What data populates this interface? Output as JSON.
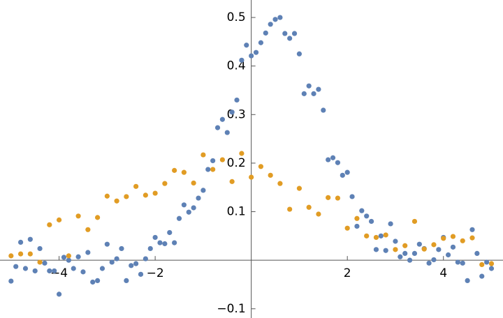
{
  "chart_data": {
    "type": "scatter",
    "xlim": [
      -5.23,
      5.24
    ],
    "ylim": [
      -0.119,
      0.536
    ],
    "xticks": [
      {
        "value": -4,
        "label": "−4"
      },
      {
        "value": -2,
        "label": "−2"
      },
      2,
      4
    ],
    "yticks": [
      {
        "value": -0.1,
        "label": "−0.1"
      },
      0.1,
      0.2,
      0.3,
      0.4,
      0.5
    ],
    "series": [
      {
        "color": "#5e81b5",
        "x": [
          -5,
          -4.9,
          -4.8,
          -4.7,
          -4.6,
          -4.5,
          -4.4,
          -4.3,
          -4.2,
          -4.1,
          -4,
          -3.9,
          -3.8,
          -3.7,
          -3.6,
          -3.5,
          -3.4,
          -3.3,
          -3.2,
          -3.1,
          -3,
          -2.9,
          -2.8,
          -2.7,
          -2.6,
          -2.5,
          -2.4,
          -2.3,
          -2.2,
          -2.1,
          -2,
          -1.9,
          -1.8,
          -1.7,
          -1.6,
          -1.5,
          -1.4,
          -1.3,
          -1.2,
          -1.1,
          -1,
          -0.9,
          -0.8,
          -0.7,
          -0.6,
          -0.5,
          -0.4,
          -0.3,
          -0.2,
          -0.1,
          0,
          0.1,
          0.2,
          0.3,
          0.4,
          0.5,
          0.6,
          0.7,
          0.8,
          0.9,
          1,
          1.1,
          1.2,
          1.3,
          1.4,
          1.5,
          1.6,
          1.7,
          1.8,
          1.9,
          2,
          2.1,
          2.2,
          2.3,
          2.4,
          2.5,
          2.6,
          2.7,
          2.8,
          2.9,
          3,
          3.1,
          3.2,
          3.3,
          3.4,
          3.5,
          3.6,
          3.7,
          3.8,
          3.9,
          4,
          4.1,
          4.2,
          4.3,
          4.4,
          4.5,
          4.6,
          4.7,
          4.8,
          4.9,
          5
        ],
        "values": [
          -0.043,
          -0.013,
          0.037,
          -0.017,
          0.043,
          -0.022,
          0.024,
          -0.006,
          -0.022,
          -0.022,
          -0.07,
          0.006,
          0.0,
          -0.017,
          0.007,
          -0.024,
          0.016,
          -0.045,
          -0.042,
          -0.017,
          0.033,
          -0.004,
          0.003,
          0.024,
          -0.042,
          -0.011,
          -0.007,
          -0.029,
          0.003,
          0.024,
          0.047,
          0.036,
          0.034,
          0.057,
          0.036,
          0.086,
          0.114,
          0.099,
          0.108,
          0.128,
          0.144,
          0.187,
          0.205,
          0.273,
          0.29,
          0.263,
          0.305,
          0.33,
          0.412,
          0.443,
          0.421,
          0.428,
          0.448,
          0.468,
          0.486,
          0.496,
          0.5,
          0.467,
          0.457,
          0.467,
          0.425,
          0.343,
          0.359,
          0.343,
          0.352,
          0.309,
          0.207,
          0.211,
          0.201,
          0.175,
          0.181,
          0.131,
          0.07,
          0.102,
          0.091,
          0.08,
          0.022,
          0.05,
          0.02,
          0.075,
          0.039,
          0.007,
          0.014,
          0.0,
          0.014,
          0.033,
          0.024,
          -0.006,
          0.001,
          0.022,
          0.047,
          0.011,
          0.027,
          -0.004,
          -0.006,
          -0.042,
          0.063,
          0.014,
          -0.033,
          -0.004,
          -0.017
        ]
      },
      {
        "color": "#e19c24",
        "x": [
          -5,
          -4.8,
          -4.6,
          -4.4,
          -4.2,
          -4,
          -3.8,
          -3.6,
          -3.4,
          -3.2,
          -3,
          -2.8,
          -2.6,
          -2.4,
          -2.2,
          -2,
          -1.8,
          -1.6,
          -1.4,
          -1.2,
          -1,
          -0.8,
          -0.6,
          -0.4,
          -0.2,
          0,
          0.2,
          0.4,
          0.6,
          0.8,
          1,
          1.2,
          1.4,
          1.6,
          1.8,
          2,
          2.2,
          2.4,
          2.6,
          2.8,
          3,
          3.2,
          3.4,
          3.6,
          3.8,
          4,
          4.2,
          4.4,
          4.6,
          4.8,
          5
        ],
        "values": [
          0.009,
          0.013,
          0.013,
          -0.004,
          0.073,
          0.083,
          0.009,
          0.091,
          0.063,
          0.088,
          0.132,
          0.122,
          0.131,
          0.152,
          0.134,
          0.138,
          0.158,
          0.185,
          0.181,
          0.159,
          0.217,
          0.187,
          0.207,
          0.162,
          0.22,
          0.171,
          0.193,
          0.175,
          0.158,
          0.105,
          0.148,
          0.109,
          0.095,
          0.129,
          0.128,
          0.066,
          0.086,
          0.05,
          0.047,
          0.052,
          0.022,
          0.03,
          0.08,
          0.023,
          0.032,
          0.045,
          0.049,
          0.04,
          0.046,
          -0.009,
          -0.007
        ]
      }
    ]
  }
}
